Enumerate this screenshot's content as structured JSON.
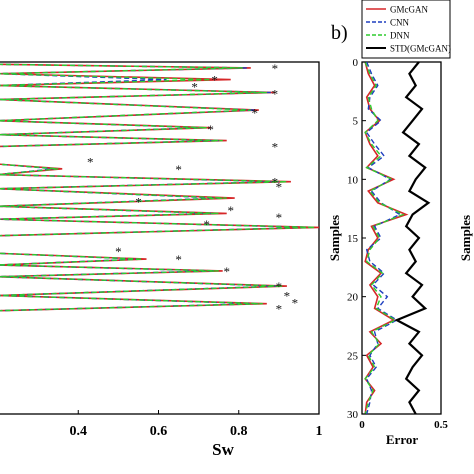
{
  "chart_data": [
    {
      "type": "line",
      "panel_label": "",
      "xlabel": "Sw",
      "ylabel": "",
      "xlim": [
        0.2,
        1.0
      ],
      "ylim_reversed": [
        0,
        30
      ],
      "xticks": [
        "0.4",
        "0.6",
        "0.8",
        "1"
      ],
      "xtick_values": [
        0.4,
        0.6,
        0.8,
        1.0
      ],
      "grid": false,
      "series": [
        {
          "name": "GMcGAN",
          "color": "#d62728",
          "dash": "solid",
          "x": [
            0.2,
            0.83,
            0.2,
            0.78,
            0.2,
            0.89,
            0.2,
            0.85,
            0.2,
            0.73,
            0.2,
            0.77,
            0.2,
            0.2,
            0.36,
            0.2,
            0.93,
            0.2,
            0.79,
            0.2,
            0.77,
            0.2,
            1.0,
            0.2,
            0.2,
            0.57,
            0.2,
            0.76,
            0.2,
            0.92,
            0.2,
            0.87,
            0.2
          ],
          "y": [
            0.2,
            0.5,
            1.0,
            1.5,
            2.0,
            2.6,
            3.2,
            4.1,
            5.0,
            5.6,
            6.2,
            6.7,
            7.2,
            8.7,
            9.1,
            9.6,
            10.2,
            10.8,
            11.6,
            12.3,
            12.9,
            13.4,
            14.1,
            14.8,
            16.3,
            16.8,
            17.3,
            17.8,
            18.3,
            19.1,
            19.9,
            20.6,
            21.2
          ]
        },
        {
          "name": "CNN",
          "color": "#1f3fbf",
          "dash": "dashed",
          "x": [
            0.2,
            0.82,
            0.2,
            0.62,
            0.2,
            0.88,
            0.2,
            0.84,
            0.2,
            0.71,
            0.2,
            0.75,
            0.2,
            0.2,
            0.34,
            0.2,
            0.9,
            0.2,
            0.75,
            0.2,
            0.74,
            0.2,
            0.98,
            0.2,
            0.2,
            0.55,
            0.2,
            0.74,
            0.2,
            0.9,
            0.2,
            0.85,
            0.2
          ],
          "y": [
            0.2,
            0.5,
            1.0,
            1.5,
            2.0,
            2.6,
            3.2,
            4.1,
            5.0,
            5.6,
            6.2,
            6.7,
            7.2,
            8.7,
            9.1,
            9.6,
            10.2,
            10.8,
            11.6,
            12.3,
            12.9,
            13.4,
            14.1,
            14.8,
            16.3,
            16.8,
            17.3,
            17.8,
            18.3,
            19.1,
            19.9,
            20.6,
            21.2
          ]
        },
        {
          "name": "DNN",
          "color": "#2ecc2e",
          "dash": "dashed",
          "x": [
            0.2,
            0.81,
            0.2,
            0.73,
            0.2,
            0.87,
            0.2,
            0.83,
            0.2,
            0.72,
            0.2,
            0.76,
            0.2,
            0.2,
            0.35,
            0.2,
            0.92,
            0.2,
            0.77,
            0.2,
            0.75,
            0.2,
            0.99,
            0.2,
            0.2,
            0.56,
            0.2,
            0.75,
            0.2,
            0.91,
            0.2,
            0.86,
            0.2
          ],
          "y": [
            0.2,
            0.5,
            1.0,
            1.5,
            2.0,
            2.6,
            3.2,
            4.1,
            5.0,
            5.6,
            6.2,
            6.7,
            7.2,
            8.7,
            9.1,
            9.6,
            10.2,
            10.8,
            11.6,
            12.3,
            12.9,
            13.4,
            14.1,
            14.8,
            16.3,
            16.8,
            17.3,
            17.8,
            18.3,
            19.1,
            19.9,
            20.6,
            21.2
          ]
        },
        {
          "name": "",
          "color": "#111111",
          "type": "scatter",
          "marker": "asterisk",
          "x": [
            0.89,
            0.74,
            0.69,
            0.89,
            0.84,
            0.73,
            0.89,
            0.43,
            0.65,
            0.89,
            0.9,
            0.55,
            0.78,
            0.9,
            0.72,
            0.5,
            0.65,
            0.77,
            0.9,
            0.92,
            0.94,
            0.9
          ],
          "y": [
            0.5,
            1.5,
            2.1,
            2.7,
            4.3,
            5.7,
            7.2,
            8.5,
            9.1,
            10.2,
            10.6,
            11.9,
            12.6,
            13.2,
            13.8,
            16.1,
            16.8,
            17.8,
            19.1,
            19.9,
            20.5,
            21.0
          ]
        }
      ]
    },
    {
      "type": "line",
      "panel_label": "b)",
      "xlabel": "Error",
      "ylabel": "Samples",
      "xlim": [
        0,
        0.5
      ],
      "ylim_reversed": [
        0,
        30
      ],
      "xticks": [
        "0",
        "0.5"
      ],
      "xtick_values": [
        0,
        0.5
      ],
      "yticks": [
        "0",
        "5",
        "10",
        "15",
        "20",
        "25",
        "30"
      ],
      "ytick_values": [
        0,
        5,
        10,
        15,
        20,
        25,
        30
      ],
      "right_ylabel": "Samples",
      "grid": false,
      "legend": {
        "placement": "top",
        "entries": [
          "GMcGAN",
          "CNN",
          "DNN",
          "STD(GMcGAN)"
        ]
      },
      "series": [
        {
          "name": "GMcGAN",
          "color": "#d62728",
          "dash": "solid",
          "x": [
            0.02,
            0.04,
            0.08,
            0.03,
            0.05,
            0.11,
            0.02,
            0.05,
            0.1,
            0.03,
            0.2,
            0.04,
            0.1,
            0.28,
            0.06,
            0.1,
            0.04,
            0.02,
            0.12,
            0.05,
            0.1,
            0.08,
            0.2,
            0.05,
            0.12,
            0.03,
            0.07,
            0.02,
            0.08,
            0.03,
            0.02
          ],
          "y": [
            0,
            1,
            2,
            3,
            4,
            5,
            6,
            7,
            8,
            9,
            10,
            11,
            12,
            13,
            14,
            15,
            16,
            17,
            18,
            19,
            20,
            21,
            22,
            23,
            24,
            25,
            26,
            27,
            28,
            29,
            30
          ]
        },
        {
          "name": "CNN",
          "color": "#1f3fbf",
          "dash": "dashed",
          "x": [
            0.03,
            0.06,
            0.1,
            0.05,
            0.04,
            0.12,
            0.03,
            0.08,
            0.14,
            0.04,
            0.18,
            0.06,
            0.12,
            0.24,
            0.08,
            0.12,
            0.03,
            0.05,
            0.14,
            0.07,
            0.16,
            0.1,
            0.22,
            0.08,
            0.1,
            0.05,
            0.09,
            0.03,
            0.06,
            0.05,
            0.03
          ],
          "y": [
            0,
            1,
            2,
            3,
            4,
            5,
            6,
            7,
            8,
            9,
            10,
            11,
            12,
            13,
            14,
            15,
            16,
            17,
            18,
            19,
            20,
            21,
            22,
            23,
            24,
            25,
            26,
            27,
            28,
            29,
            30
          ]
        },
        {
          "name": "DNN",
          "color": "#2ecc2e",
          "dash": "dashed",
          "x": [
            0.02,
            0.05,
            0.09,
            0.04,
            0.06,
            0.1,
            0.02,
            0.06,
            0.12,
            0.03,
            0.19,
            0.05,
            0.11,
            0.26,
            0.07,
            0.11,
            0.05,
            0.03,
            0.13,
            0.06,
            0.12,
            0.09,
            0.21,
            0.06,
            0.11,
            0.04,
            0.08,
            0.02,
            0.07,
            0.04,
            0.02
          ],
          "y": [
            0,
            1,
            2,
            3,
            4,
            5,
            6,
            7,
            8,
            9,
            10,
            11,
            12,
            13,
            14,
            15,
            16,
            17,
            18,
            19,
            20,
            21,
            22,
            23,
            24,
            25,
            26,
            27,
            28,
            29,
            30
          ]
        },
        {
          "name": "STD(GMcGAN)",
          "color": "#000000",
          "dash": "solid",
          "x": [
            0.36,
            0.3,
            0.34,
            0.28,
            0.38,
            0.32,
            0.26,
            0.36,
            0.3,
            0.4,
            0.34,
            0.3,
            0.42,
            0.32,
            0.28,
            0.36,
            0.3,
            0.34,
            0.28,
            0.38,
            0.32,
            0.4,
            0.22,
            0.36,
            0.3,
            0.38,
            0.32,
            0.28,
            0.36,
            0.3,
            0.34
          ],
          "y": [
            0,
            1,
            2,
            3,
            4,
            5,
            6,
            7,
            8,
            9,
            10,
            11,
            12,
            13,
            14,
            15,
            16,
            17,
            18,
            19,
            20,
            21,
            22,
            23,
            24,
            25,
            26,
            27,
            28,
            29,
            30
          ]
        }
      ]
    }
  ]
}
